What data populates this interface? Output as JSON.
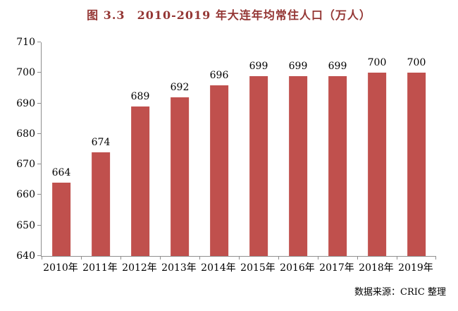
{
  "title": "图 3.3　2010-2019 年大连年均常住人口（万人）",
  "source": "数据来源：CRIC 整理",
  "colors": {
    "bar": "#c0504d",
    "title": "#943634",
    "axis": "#8e8e8e",
    "text": "#000000"
  },
  "chart_data": {
    "type": "bar",
    "title": "图 3.3　2010-2019 年大连年均常住人口（万人）",
    "categories": [
      "2010年",
      "2011年",
      "2012年",
      "2013年",
      "2014年",
      "2015年",
      "2016年",
      "2017年",
      "2018年",
      "2019年"
    ],
    "values": [
      664,
      674,
      689,
      692,
      696,
      699,
      699,
      699,
      700,
      700
    ],
    "xlabel": "",
    "ylabel": "",
    "ylim": [
      640,
      710
    ],
    "yticks": [
      640,
      650,
      660,
      670,
      680,
      690,
      700,
      710
    ],
    "grid": false,
    "legend": false,
    "data_labels": true,
    "source": "数据来源：CRIC 整理"
  }
}
